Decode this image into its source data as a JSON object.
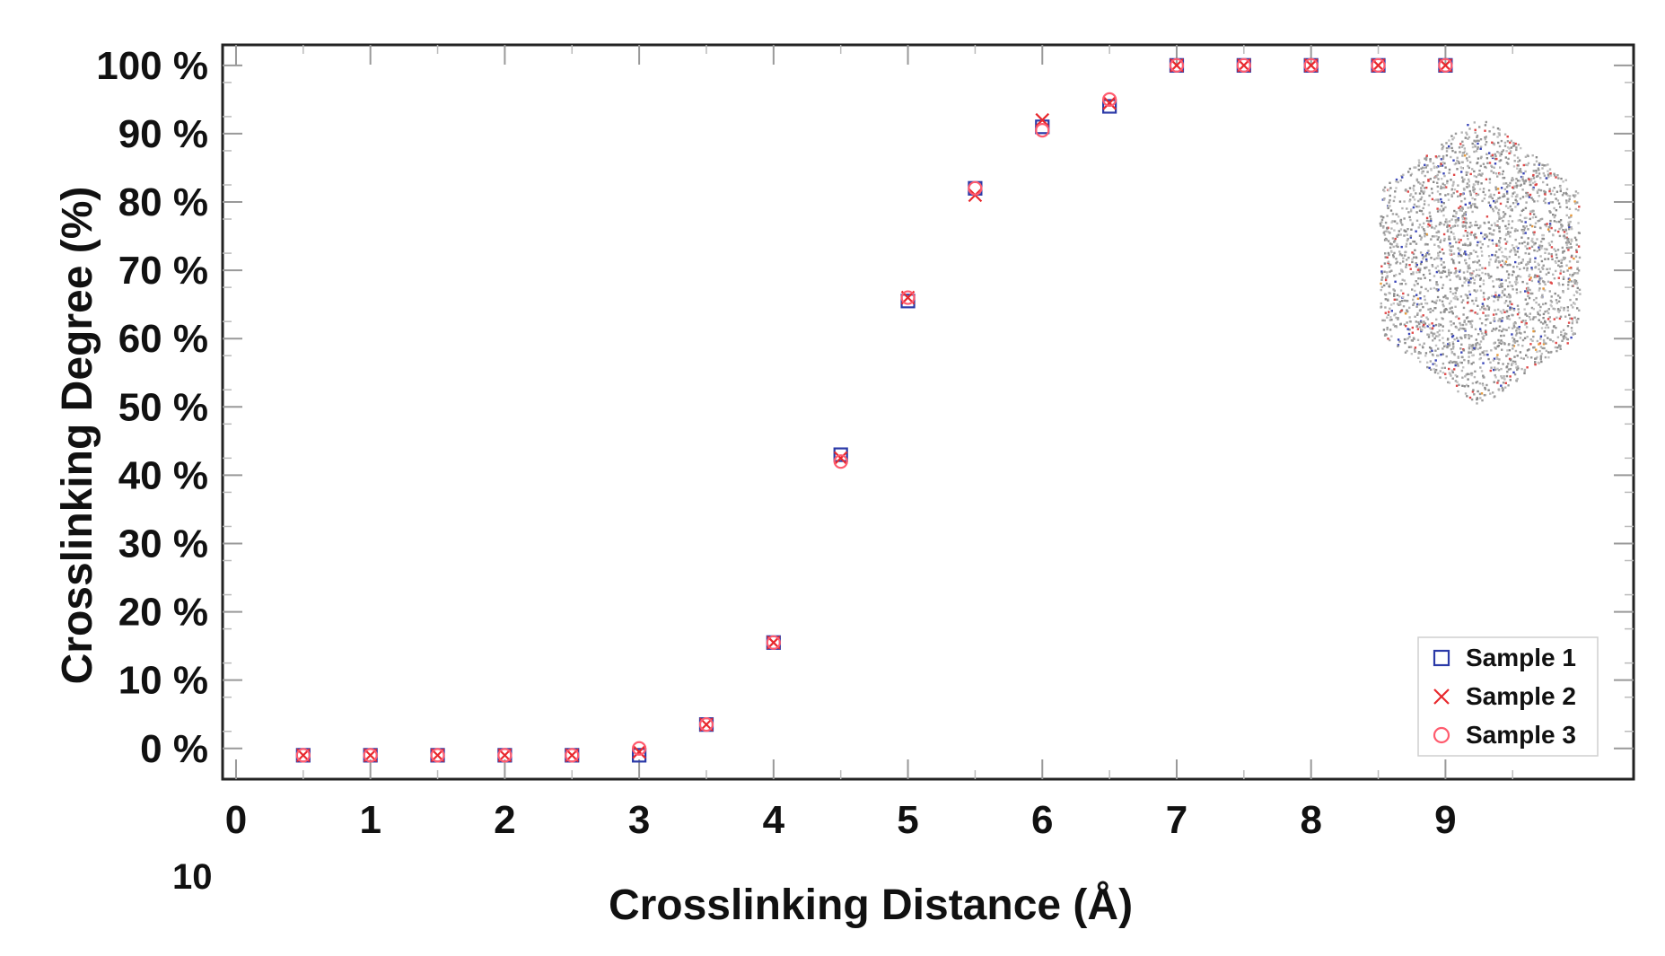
{
  "chart_data": {
    "type": "scatter",
    "title": "",
    "xlabel": "Crosslinking Distance (Å)",
    "ylabel": "Crosslinking Degree (%)",
    "xlim": [
      -0.1,
      10.4
    ],
    "ylim": [
      -4.5,
      103
    ],
    "x_ticks": [
      0,
      1,
      2,
      3,
      4,
      5,
      6,
      7,
      8,
      9
    ],
    "x_tick_labels": [
      "0",
      "1",
      "2",
      "3",
      "4",
      "5",
      "6",
      "7",
      "8",
      "9"
    ],
    "y_ticks": [
      0,
      10,
      20,
      30,
      40,
      50,
      60,
      70,
      80,
      90,
      100
    ],
    "y_tick_labels": [
      "0 %",
      "10 %",
      "20 %",
      "30 %",
      "40 %",
      "50 %",
      "60 %",
      "70 %",
      "80 %",
      "90 %",
      "100 %"
    ],
    "extra_label": "10",
    "grid": false,
    "legend_position": "bottom-right",
    "x": [
      0.5,
      1.0,
      1.5,
      2.0,
      2.5,
      3.0,
      3.5,
      4.0,
      4.5,
      5.0,
      5.5,
      6.0,
      6.5,
      7.0,
      7.5,
      8.0,
      8.5,
      9.0
    ],
    "series": [
      {
        "name": "Sample 1",
        "marker": "square",
        "color": "#2b3aa8",
        "values": [
          -1,
          -1,
          -1,
          -1,
          -1,
          -1,
          3.5,
          15.5,
          43,
          65.5,
          82,
          91,
          94,
          100,
          100,
          100,
          100,
          100
        ]
      },
      {
        "name": "Sample 2",
        "marker": "x",
        "color": "#e8282d",
        "values": [
          -1,
          -1,
          -1,
          -1,
          -1,
          -0.5,
          3.5,
          15.5,
          42.5,
          66,
          81,
          92,
          94.5,
          100,
          100,
          100,
          100,
          100
        ]
      },
      {
        "name": "Sample 3",
        "marker": "circle",
        "color": "#ff5b6e",
        "values": [
          -1,
          -1,
          -1,
          -1,
          -1,
          0,
          3.5,
          15.5,
          42,
          66,
          82,
          90.5,
          95,
          100,
          100,
          100,
          100,
          100
        ]
      }
    ],
    "inset": "molecular-structure"
  }
}
